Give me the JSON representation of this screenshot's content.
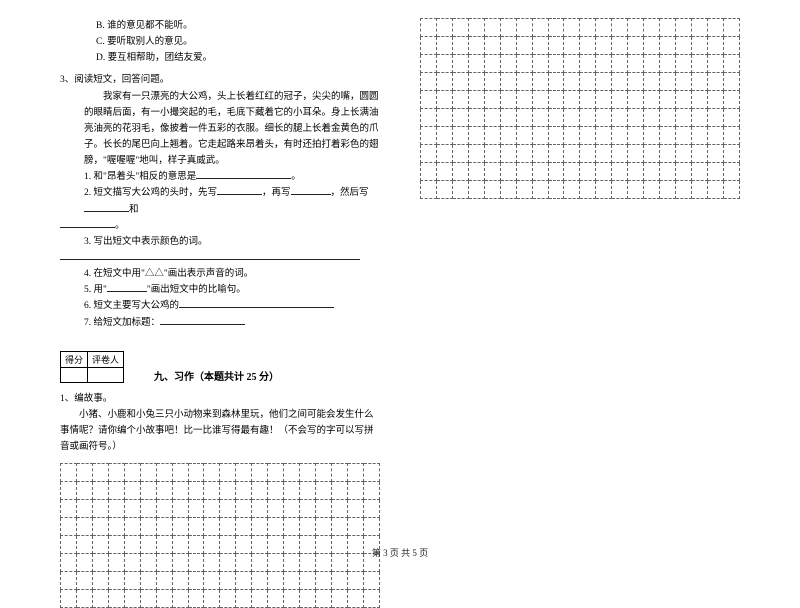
{
  "options": {
    "b": "B. 谁的意见都不能听。",
    "c": "C. 要听取别人的意见。",
    "d": "D. 要互相帮助，团结友爱。"
  },
  "q3_head": "3、阅读短文，回答问题。",
  "passage": {
    "p1": "　　我家有一只漂亮的大公鸡，头上长着红红的冠子，尖尖的嘴，圆圆的眼睛后面，有一小撮突起的毛，毛底下藏着它的小耳朵。身上长满油亮油亮的花羽毛，像披着一件五彩的衣服。细长的腿上长着金黄色的爪子。长长的尾巴向上翘着。它走起路来昂着头，有时还拍打着彩色的翅膀，\"喔喔喔\"地叫，样子真威武。"
  },
  "sub": {
    "s1a": "1. 和\"昂着头\"相反的意思是",
    "s1b": "。",
    "s2a": "2. 短文描写大公鸡的头时，先写",
    "s2b": "，再写",
    "s2c": "，然后写",
    "s2d": "和",
    "s2e": "。",
    "s3": "3. 写出短文中表示颜色的词。",
    "s4": "4. 在短文中用\"△△\"画出表示声音的词。",
    "s5a": "5. 用\"",
    "s5b": "\"画出短文中的比喻句。",
    "s6": "6. 短文主要写大公鸡的",
    "s7": "7. 给短文加标题："
  },
  "score_labels": {
    "a": "得分",
    "b": "评卷人"
  },
  "section9": "九、习作（本题共计 25 分）",
  "compose": {
    "head": "1、编故事。",
    "body": "　　小猪、小鹿和小兔三只小动物来到森林里玩，他们之间可能会发生什么事情呢？请你编个小故事吧！比一比谁写得最有趣！（不会写的字可以写拼音或画符号。）"
  },
  "grid_left": {
    "rows": 8,
    "cols": 20
  },
  "grid_right": {
    "rows": 10,
    "cols": 20
  },
  "footer": "第 3 页 共 5 页",
  "colors": {
    "text": "#000000",
    "bg": "#ffffff",
    "dash": "#666666"
  }
}
